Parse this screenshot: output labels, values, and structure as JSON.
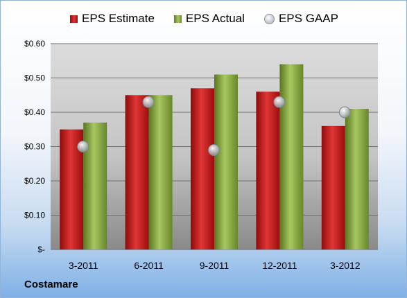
{
  "company": "Costamare",
  "legend": {
    "estimate": "EPS Estimate",
    "actual": "EPS Actual",
    "gaap": "EPS GAAP"
  },
  "colors": {
    "estimate": "#c0161b",
    "actual": "#8aaa45",
    "gaap": "#b8bec6",
    "plot_top": "#d9d9d9",
    "plot_bottom": "#8c8c8c"
  },
  "chart_data": {
    "type": "bar",
    "categories": [
      "3-2011",
      "6-2011",
      "9-2011",
      "12-2011",
      "3-2012"
    ],
    "series": [
      {
        "name": "EPS Estimate",
        "values": [
          0.35,
          0.45,
          0.47,
          0.46,
          0.36
        ]
      },
      {
        "name": "EPS Actual",
        "values": [
          0.37,
          0.45,
          0.51,
          0.54,
          0.41
        ]
      },
      {
        "name": "EPS GAAP",
        "marker": "circle",
        "values": [
          0.3,
          0.43,
          0.29,
          0.43,
          0.4
        ]
      }
    ],
    "ylim": [
      0,
      0.6
    ],
    "yticks": [
      0,
      0.1,
      0.2,
      0.3,
      0.4,
      0.5,
      0.6
    ],
    "ytick_labels": [
      "$-",
      "$0.10",
      "$0.20",
      "$0.30",
      "$0.40",
      "$0.50",
      "$0.60"
    ],
    "grid": true,
    "legend_position": "top"
  }
}
